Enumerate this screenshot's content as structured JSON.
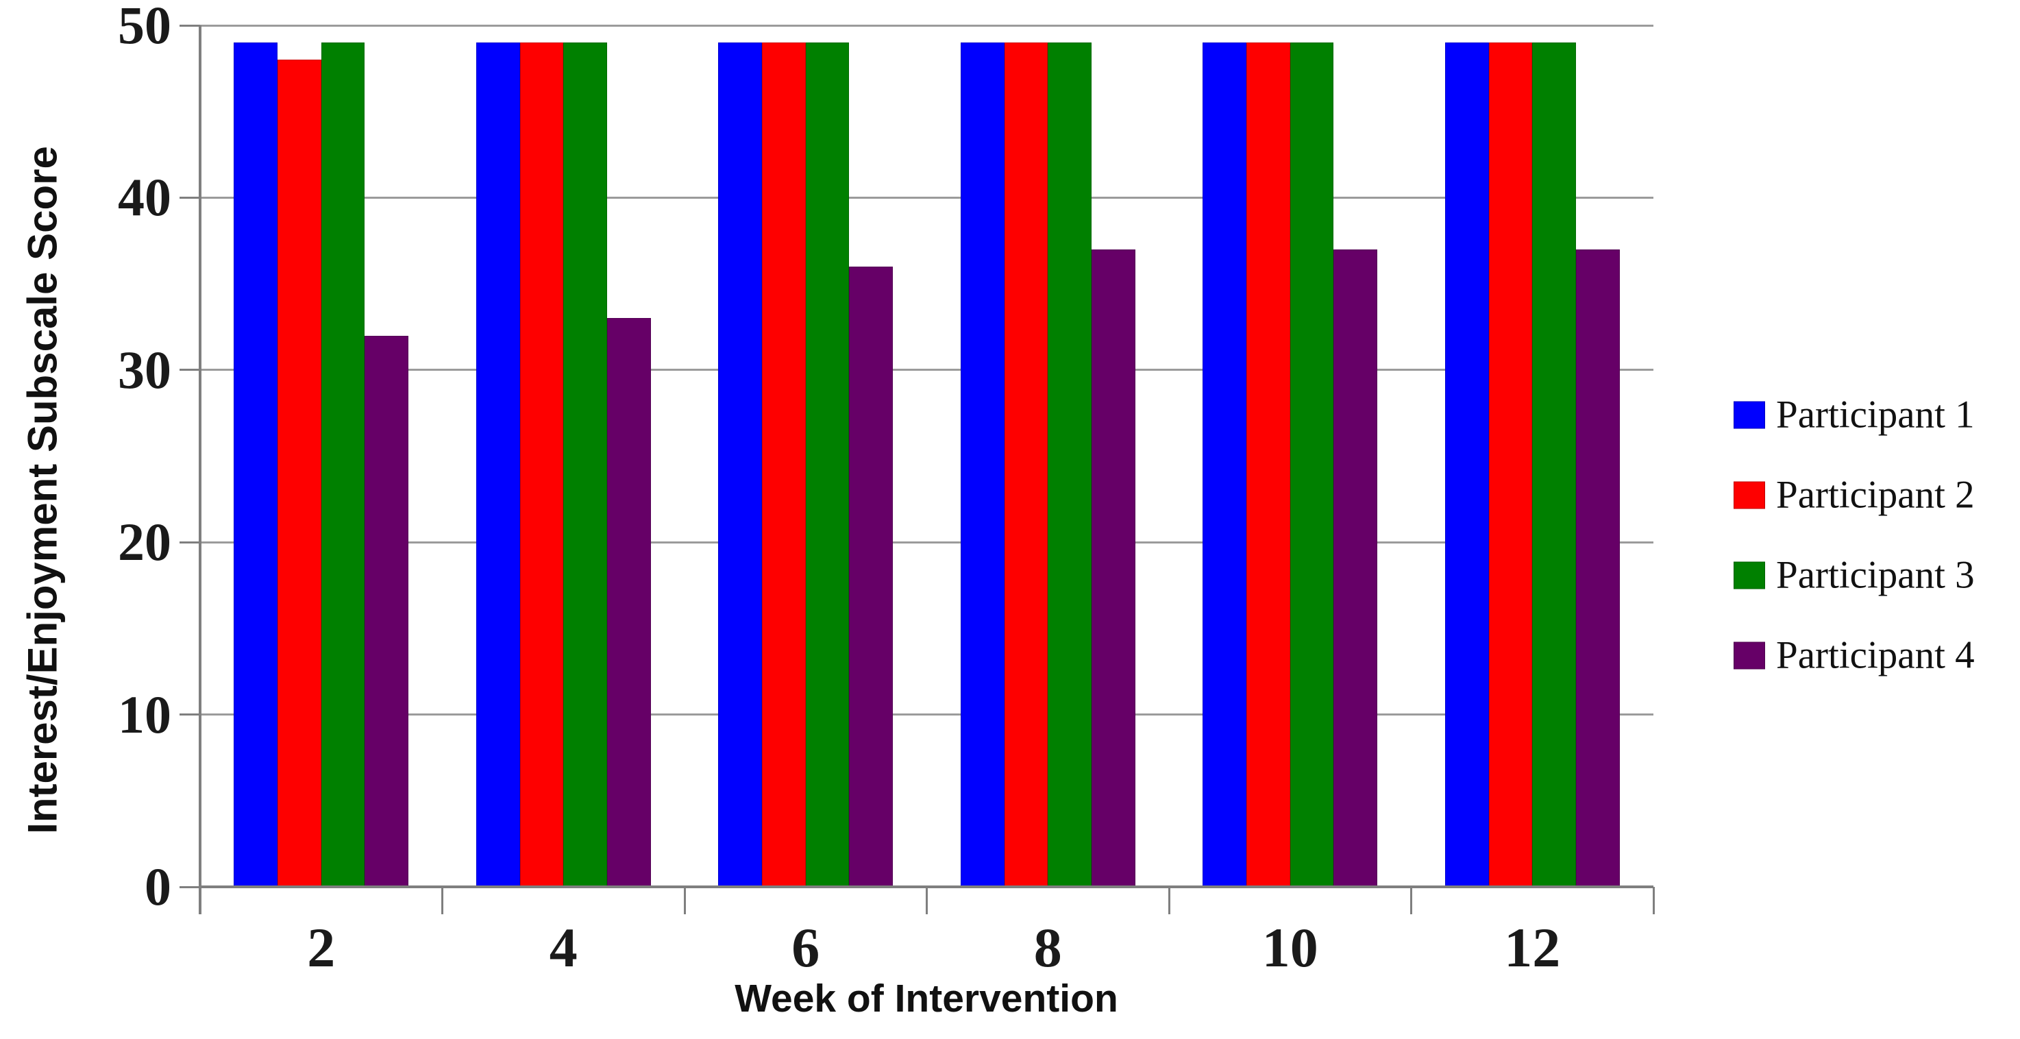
{
  "chart_data": {
    "type": "bar",
    "title": "",
    "xlabel": "Week of Intervention",
    "ylabel": "Interest/Enjoyment Subscale Score",
    "categories": [
      "2",
      "4",
      "6",
      "8",
      "10",
      "12"
    ],
    "series": [
      {
        "name": "Participant 1",
        "color": "#0000FE",
        "values": [
          49,
          49,
          49,
          49,
          49,
          49
        ]
      },
      {
        "name": "Participant 2",
        "color": "#FE0000",
        "values": [
          48,
          49,
          49,
          49,
          49,
          49
        ]
      },
      {
        "name": "Participant 3",
        "color": "#008000",
        "values": [
          49,
          49,
          49,
          49,
          49,
          49
        ]
      },
      {
        "name": "Participant 4",
        "color": "#660067",
        "values": [
          32,
          33,
          36,
          37,
          37,
          37
        ]
      }
    ],
    "ylim": [
      0,
      50
    ],
    "yticks": [
      0,
      10,
      20,
      30,
      40,
      50
    ],
    "grid": true,
    "gridline_color": "#9b9b9b",
    "axis_color": "#7f7f7f",
    "legend_position": "right"
  }
}
